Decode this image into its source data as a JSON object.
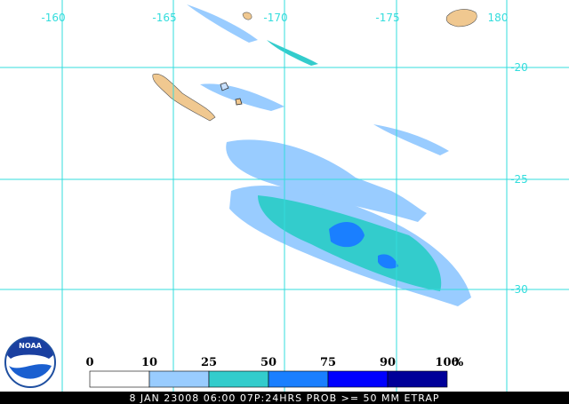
{
  "map": {
    "longitude_labels": [
      "-160",
      "-165",
      "-170",
      "-175",
      "180"
    ],
    "latitude_labels": [
      "-20",
      "-25",
      "-30"
    ],
    "grid_color": "#33dddd",
    "logo": "NOAA",
    "legend": {
      "labels": [
        "0",
        "10",
        "25",
        "50",
        "75",
        "90",
        "100"
      ],
      "unit": "%",
      "colors": [
        "#ffffff",
        "#99ccff",
        "#33cccc",
        "#1a7fff",
        "#0000ff",
        "#000099"
      ]
    },
    "footer": "8 JAN 23008 06:00 07P:24HRS PROB >= 50 MM ETRAP"
  }
}
